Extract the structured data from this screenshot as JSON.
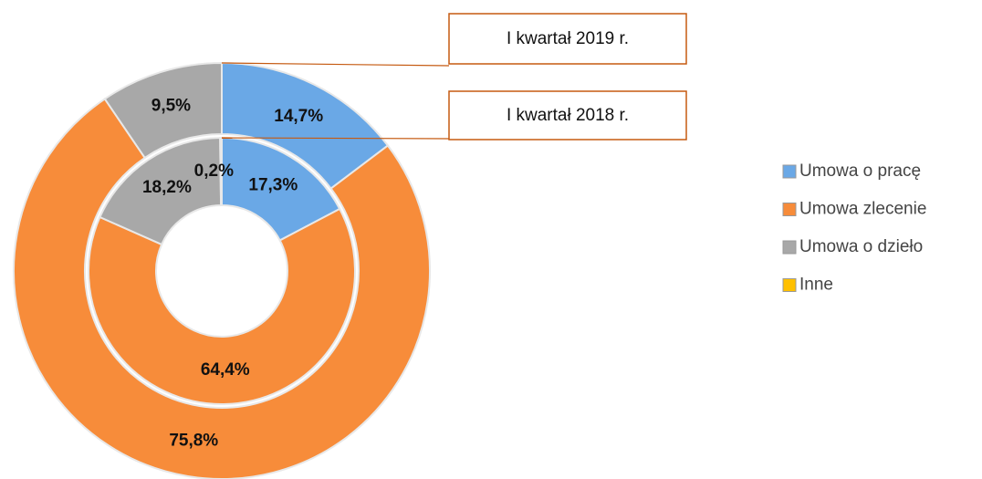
{
  "chart_data": {
    "type": "donut",
    "categories": [
      "Umowa o pracę",
      "Umowa zlecenie",
      "Umowa o dzieło",
      "Inne"
    ],
    "colors": [
      "#6aa8e6",
      "#f78c3a",
      "#a8a8a8",
      "#ffc000"
    ],
    "series": [
      {
        "name": "I kwartał 2019 r.",
        "values": [
          14.7,
          75.8,
          9.5,
          0
        ],
        "value_labels": [
          "14,7%",
          "75,8%",
          "9,5%",
          null
        ]
      },
      {
        "name": "I kwartał 2018 r.",
        "values": [
          17.3,
          64.4,
          18.2,
          0.2
        ],
        "value_labels": [
          "17,3%",
          "64,4%",
          "18,2%",
          "0,2%"
        ]
      }
    ],
    "legend": "right"
  }
}
